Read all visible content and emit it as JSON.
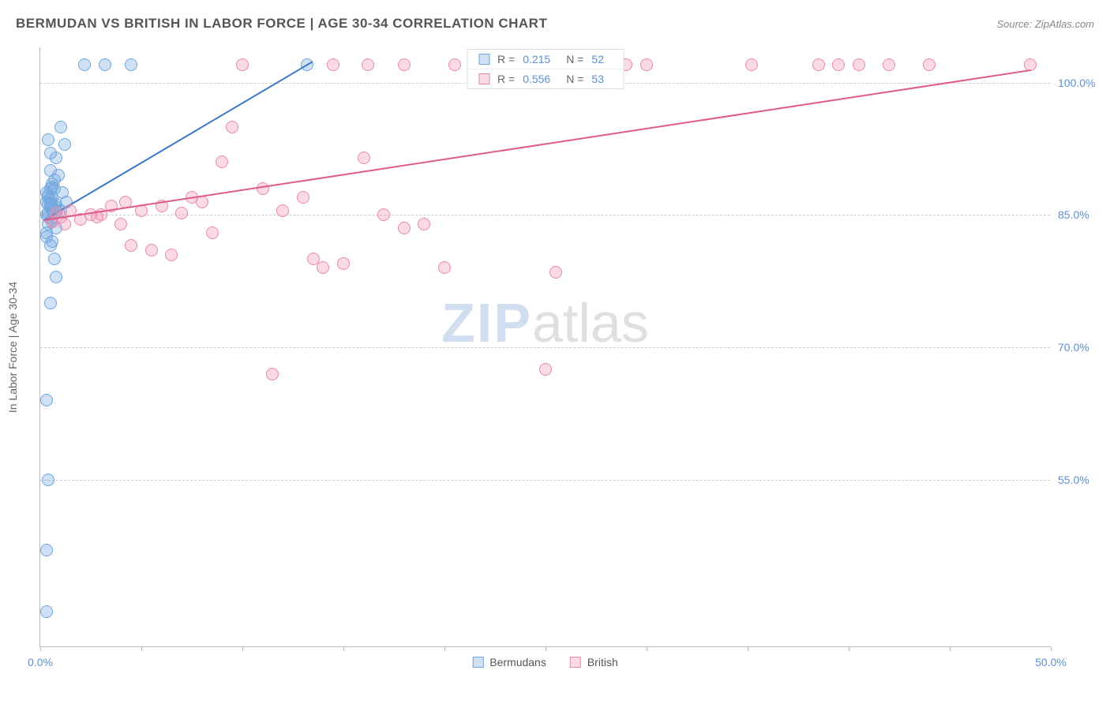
{
  "title": "BERMUDAN VS BRITISH IN LABOR FORCE | AGE 30-34 CORRELATION CHART",
  "source": "Source: ZipAtlas.com",
  "y_axis_label": "In Labor Force | Age 30-34",
  "watermark": {
    "part1": "ZIP",
    "part2": "atlas"
  },
  "chart": {
    "type": "scatter",
    "xlim": [
      0,
      50
    ],
    "ylim": [
      36,
      104
    ],
    "x_ticks": [
      0,
      5,
      10,
      15,
      20,
      25,
      30,
      35,
      40,
      45,
      50
    ],
    "x_tick_labels": {
      "0": "0.0%",
      "50": "50.0%"
    },
    "y_ticks": [
      55,
      70,
      85,
      100
    ],
    "y_tick_labels": [
      "55.0%",
      "70.0%",
      "85.0%",
      "100.0%"
    ],
    "background_color": "#ffffff",
    "grid_color": "#cccccc",
    "axis_color": "#bbbbbb",
    "tick_label_color": "#5b8fd6",
    "marker_radius": 8,
    "marker_stroke_width": 1,
    "series": [
      {
        "name": "Bermudans",
        "fill_color": "rgba(120,170,225,0.35)",
        "stroke_color": "#6da6dd",
        "trend_color": "#3b78c9",
        "r_value": "0.215",
        "n_value": "52",
        "trend": {
          "x1": 0.2,
          "y1": 84.5,
          "x2": 13.5,
          "y2": 102.5
        },
        "points": [
          [
            0.3,
            85
          ],
          [
            0.4,
            87
          ],
          [
            0.5,
            88
          ],
          [
            0.6,
            86
          ],
          [
            0.7,
            89
          ],
          [
            0.8,
            85.5
          ],
          [
            0.5,
            90
          ],
          [
            0.4,
            84
          ],
          [
            0.3,
            83
          ],
          [
            0.6,
            82
          ],
          [
            0.7,
            80
          ],
          [
            0.8,
            78
          ],
          [
            0.5,
            75
          ],
          [
            0.3,
            64
          ],
          [
            0.4,
            55
          ],
          [
            0.3,
            47
          ],
          [
            0.3,
            40
          ],
          [
            2.2,
            102
          ],
          [
            3.2,
            102
          ],
          [
            4.5,
            102
          ],
          [
            1.0,
            95
          ],
          [
            1.2,
            93
          ],
          [
            0.8,
            91.5
          ],
          [
            0.9,
            89.5
          ],
          [
            1.1,
            87.5
          ],
          [
            1.3,
            86.5
          ],
          [
            0.6,
            84.5
          ],
          [
            0.5,
            86.8
          ],
          [
            0.7,
            85.2
          ],
          [
            0.4,
            87.3
          ],
          [
            0.6,
            88.5
          ],
          [
            0.8,
            86.2
          ],
          [
            1.0,
            85.5
          ],
          [
            0.5,
            92
          ],
          [
            0.4,
            93.5
          ],
          [
            13.2,
            102
          ],
          [
            0.6,
            87
          ],
          [
            0.7,
            86
          ],
          [
            0.3,
            86.5
          ],
          [
            0.5,
            85.8
          ],
          [
            0.4,
            85.2
          ],
          [
            0.6,
            84.2
          ],
          [
            0.8,
            83.5
          ],
          [
            0.3,
            82.5
          ],
          [
            0.5,
            81.5
          ],
          [
            0.4,
            86.2
          ],
          [
            0.6,
            85.5
          ],
          [
            0.3,
            87.5
          ],
          [
            0.7,
            88
          ],
          [
            0.5,
            86.3
          ],
          [
            0.4,
            84.8
          ],
          [
            0.6,
            88.2
          ]
        ]
      },
      {
        "name": "British",
        "fill_color": "rgba(240,150,180,0.35)",
        "stroke_color": "#e88aa8",
        "trend_color": "#e05a8a",
        "r_value": "0.556",
        "n_value": "53",
        "trend": {
          "x1": 0.2,
          "y1": 84.5,
          "x2": 49,
          "y2": 101.5
        },
        "points": [
          [
            14.5,
            102
          ],
          [
            16.2,
            102
          ],
          [
            18,
            102
          ],
          [
            20.5,
            102
          ],
          [
            21.5,
            102
          ],
          [
            24,
            102
          ],
          [
            29,
            102
          ],
          [
            30,
            102
          ],
          [
            35.2,
            102
          ],
          [
            38.5,
            102
          ],
          [
            39.5,
            102
          ],
          [
            40.5,
            102
          ],
          [
            42,
            102
          ],
          [
            44,
            102
          ],
          [
            49,
            102
          ],
          [
            2,
            84.5
          ],
          [
            3,
            85
          ],
          [
            4,
            84
          ],
          [
            5,
            85.5
          ],
          [
            5.5,
            81
          ],
          [
            6,
            86
          ],
          [
            7,
            85.2
          ],
          [
            7.5,
            87
          ],
          [
            8,
            86.5
          ],
          [
            8.5,
            83
          ],
          [
            9,
            91
          ],
          [
            9.5,
            95
          ],
          [
            10,
            102
          ],
          [
            11,
            88
          ],
          [
            12,
            85.5
          ],
          [
            13,
            87
          ],
          [
            13.5,
            80
          ],
          [
            14,
            79
          ],
          [
            15,
            79.5
          ],
          [
            16,
            91.5
          ],
          [
            17,
            85
          ],
          [
            18,
            83.5
          ],
          [
            19,
            84
          ],
          [
            20,
            79
          ],
          [
            25,
            67.5
          ],
          [
            11.5,
            67
          ],
          [
            4.5,
            81.5
          ],
          [
            6.5,
            80.5
          ],
          [
            25.5,
            78.5
          ],
          [
            3.5,
            86
          ],
          [
            2.5,
            85
          ],
          [
            1.5,
            85.5
          ],
          [
            1.0,
            84.8
          ],
          [
            0.8,
            85.2
          ],
          [
            0.6,
            84.2
          ],
          [
            1.2,
            84
          ],
          [
            2.8,
            84.8
          ],
          [
            4.2,
            86.5
          ]
        ]
      }
    ]
  },
  "legend_bottom": [
    {
      "label": "Bermudans",
      "series_idx": 0
    },
    {
      "label": "British",
      "series_idx": 1
    }
  ]
}
